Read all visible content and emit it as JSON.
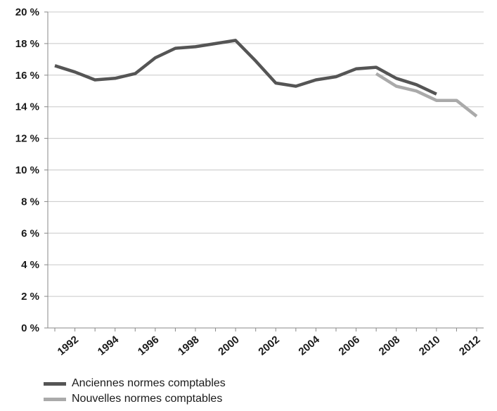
{
  "chart_data": {
    "type": "line",
    "title": "",
    "xlabel": "",
    "ylabel": "",
    "ylim": [
      0,
      20
    ],
    "xlim": [
      1991,
      2012
    ],
    "y_ticks": [
      "0 %",
      "2 %",
      "4 %",
      "6 %",
      "8 %",
      "10 %",
      "12 %",
      "14 %",
      "16 %",
      "18 %",
      "20 %"
    ],
    "y_tick_values": [
      0,
      2,
      4,
      6,
      8,
      10,
      12,
      14,
      16,
      18,
      20
    ],
    "x_tick_labels": [
      "1992",
      "1994",
      "1996",
      "1998",
      "2000",
      "2002",
      "2004",
      "2006",
      "2008",
      "2010",
      "2012"
    ],
    "x_tick_values": [
      1992,
      1994,
      1996,
      1998,
      2000,
      2002,
      2004,
      2006,
      2008,
      2010,
      2012
    ],
    "grid": "horizontal",
    "legend_position": "bottom-left",
    "series": [
      {
        "name": "Anciennes normes comptables",
        "color": "#555555",
        "x": [
          1991,
          1992,
          1993,
          1994,
          1995,
          1996,
          1997,
          1998,
          1999,
          2000,
          2001,
          2002,
          2003,
          2004,
          2005,
          2006,
          2007,
          2008,
          2009,
          2010
        ],
        "values": [
          16.6,
          16.2,
          15.7,
          15.8,
          16.1,
          17.1,
          17.7,
          17.8,
          18.0,
          18.2,
          16.9,
          15.5,
          15.3,
          15.7,
          15.9,
          16.4,
          16.5,
          15.8,
          15.4,
          14.8
        ]
      },
      {
        "name": "Nouvelles normes comptables",
        "color": "#aaaaaa",
        "x": [
          2007,
          2008,
          2009,
          2010,
          2011,
          2012
        ],
        "values": [
          16.1,
          15.3,
          15.0,
          14.4,
          14.4,
          13.4
        ]
      }
    ]
  }
}
